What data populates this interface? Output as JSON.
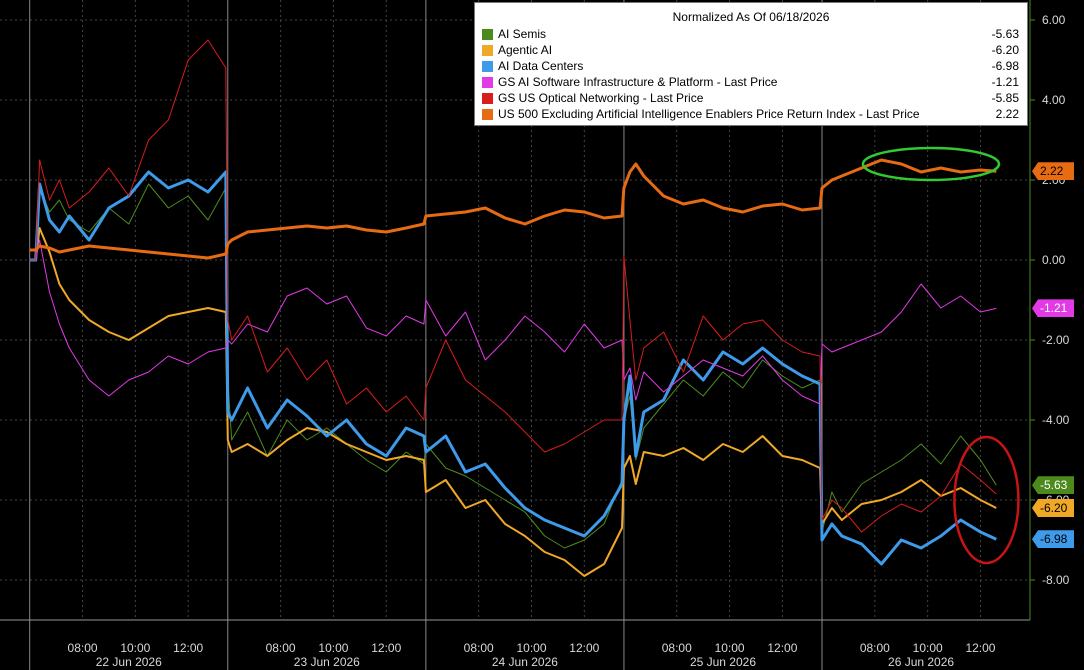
{
  "chart_data": {
    "type": "line",
    "title": "Normalized As Of 06/18/2026",
    "ylim": [
      -9.0,
      6.5
    ],
    "y_ticks": [
      6.0,
      4.0,
      2.0,
      0.0,
      -2.0,
      -4.0,
      -6.0,
      -8.0
    ],
    "y_tick_labels": [
      "6.00",
      "4.00",
      "2.00",
      "0.00",
      "-2.00",
      "-4.00",
      "-6.00",
      "-8.00"
    ],
    "x_ticks": [
      {
        "day": 0,
        "time": "08:00"
      },
      {
        "day": 0,
        "time": "10:00"
      },
      {
        "day": 0,
        "time": "12:00"
      },
      {
        "day": 1,
        "time": "08:00"
      },
      {
        "day": 1,
        "time": "10:00"
      },
      {
        "day": 1,
        "time": "12:00"
      },
      {
        "day": 2,
        "time": "08:00"
      },
      {
        "day": 2,
        "time": "10:00"
      },
      {
        "day": 2,
        "time": "12:00"
      },
      {
        "day": 3,
        "time": "08:00"
      },
      {
        "day": 3,
        "time": "10:00"
      },
      {
        "day": 3,
        "time": "12:00"
      },
      {
        "day": 4,
        "time": "08:00"
      },
      {
        "day": 4,
        "time": "10:00"
      },
      {
        "day": 4,
        "time": "12:00"
      }
    ],
    "days": [
      "22 Jun 2026",
      "23 Jun 2026",
      "24 Jun 2026",
      "25 Jun 2026",
      "26 Jun 2026"
    ],
    "x_unit": "session index (day + fraction of session 06:00–13:30)",
    "series": [
      {
        "name": "AI Semis",
        "color": "#4d8a1e",
        "last": "-5.63",
        "width": 1,
        "x": [
          0,
          0.03,
          0.05,
          0.1,
          0.15,
          0.2,
          0.3,
          0.4,
          0.5,
          0.6,
          0.7,
          0.8,
          0.9,
          0.99,
          1.0,
          1.02,
          1.1,
          1.2,
          1.3,
          1.4,
          1.5,
          1.6,
          1.7,
          1.8,
          1.9,
          1.99,
          2.0,
          2.1,
          2.2,
          2.3,
          2.4,
          2.5,
          2.6,
          2.7,
          2.8,
          2.9,
          2.99,
          3.0,
          3.03,
          3.06,
          3.1,
          3.2,
          3.3,
          3.4,
          3.5,
          3.6,
          3.7,
          3.8,
          3.9,
          3.99,
          4.0,
          4.05,
          4.1,
          4.2,
          4.3,
          4.4,
          4.5,
          4.6,
          4.7,
          4.8,
          4.88
        ],
        "y": [
          0,
          0,
          1.8,
          1.2,
          1.5,
          1.0,
          0.7,
          1.3,
          0.9,
          1.9,
          1.3,
          1.6,
          1.0,
          1.8,
          -3.0,
          -4.5,
          -3.8,
          -4.9,
          -4.0,
          -4.5,
          -4.2,
          -4.6,
          -5.0,
          -5.3,
          -4.8,
          -5.1,
          -4.6,
          -5.2,
          -5.4,
          -5.7,
          -6.0,
          -6.3,
          -6.9,
          -7.2,
          -7.0,
          -6.6,
          -5.5,
          -4.0,
          -3.4,
          -5.0,
          -4.2,
          -3.6,
          -3.0,
          -3.4,
          -2.8,
          -3.2,
          -2.5,
          -2.9,
          -3.2,
          -3.0,
          -6.8,
          -5.8,
          -6.3,
          -5.6,
          -5.3,
          -5.0,
          -4.6,
          -5.1,
          -4.4,
          -5.0,
          -5.63
        ]
      },
      {
        "name": "Agentic AI",
        "color": "#f0a826",
        "last": "-6.20",
        "width": 2,
        "x": [
          0,
          0.03,
          0.05,
          0.1,
          0.15,
          0.2,
          0.3,
          0.4,
          0.5,
          0.6,
          0.7,
          0.8,
          0.9,
          0.99,
          1.0,
          1.02,
          1.1,
          1.2,
          1.3,
          1.4,
          1.5,
          1.6,
          1.7,
          1.8,
          1.9,
          1.99,
          2.0,
          2.1,
          2.2,
          2.3,
          2.4,
          2.5,
          2.6,
          2.7,
          2.8,
          2.9,
          2.99,
          3.0,
          3.03,
          3.06,
          3.1,
          3.2,
          3.3,
          3.4,
          3.5,
          3.6,
          3.7,
          3.8,
          3.9,
          3.99,
          4.0,
          4.05,
          4.1,
          4.2,
          4.3,
          4.4,
          4.5,
          4.6,
          4.7,
          4.8,
          4.88
        ],
        "y": [
          0,
          0,
          0.8,
          0.2,
          -0.6,
          -1.0,
          -1.5,
          -1.8,
          -2.0,
          -1.7,
          -1.4,
          -1.3,
          -1.2,
          -1.3,
          -4.5,
          -4.8,
          -4.6,
          -4.9,
          -4.5,
          -4.2,
          -4.3,
          -4.6,
          -4.8,
          -5.0,
          -4.9,
          -5.0,
          -5.8,
          -5.5,
          -6.2,
          -6.0,
          -6.6,
          -6.9,
          -7.3,
          -7.5,
          -7.9,
          -7.6,
          -6.7,
          -5.2,
          -4.9,
          -5.6,
          -4.8,
          -4.9,
          -4.7,
          -5.0,
          -4.6,
          -4.8,
          -4.4,
          -4.9,
          -5.0,
          -5.2,
          -6.6,
          -6.2,
          -6.5,
          -6.1,
          -6.0,
          -5.8,
          -5.5,
          -5.9,
          -5.7,
          -6.0,
          -6.2
        ]
      },
      {
        "name": "AI Data Centers",
        "color": "#3e9bea",
        "last": "-6.98",
        "width": 3,
        "x": [
          0,
          0.03,
          0.05,
          0.1,
          0.15,
          0.2,
          0.3,
          0.4,
          0.5,
          0.6,
          0.7,
          0.8,
          0.9,
          0.99,
          1.0,
          1.02,
          1.1,
          1.2,
          1.3,
          1.4,
          1.5,
          1.6,
          1.7,
          1.8,
          1.9,
          1.99,
          2.0,
          2.1,
          2.2,
          2.3,
          2.4,
          2.5,
          2.6,
          2.7,
          2.8,
          2.9,
          2.99,
          3.0,
          3.03,
          3.06,
          3.1,
          3.2,
          3.3,
          3.4,
          3.5,
          3.6,
          3.7,
          3.8,
          3.9,
          3.99,
          4.0,
          4.05,
          4.1,
          4.2,
          4.3,
          4.4,
          4.5,
          4.6,
          4.7,
          4.8,
          4.88
        ],
        "y": [
          0,
          0,
          1.9,
          1.0,
          0.7,
          1.1,
          0.5,
          1.3,
          1.6,
          2.2,
          1.8,
          2.0,
          1.7,
          2.2,
          -3.8,
          -4.0,
          -3.2,
          -4.2,
          -3.5,
          -3.9,
          -4.4,
          -4.0,
          -4.6,
          -4.9,
          -4.2,
          -4.4,
          -4.8,
          -4.4,
          -5.3,
          -5.1,
          -5.7,
          -6.2,
          -6.5,
          -6.7,
          -6.9,
          -6.4,
          -5.6,
          -4.0,
          -2.9,
          -4.9,
          -3.8,
          -3.5,
          -2.5,
          -3.0,
          -2.3,
          -2.6,
          -2.2,
          -2.6,
          -2.9,
          -3.1,
          -7.0,
          -6.6,
          -6.9,
          -7.1,
          -7.6,
          -7.0,
          -7.2,
          -6.9,
          -6.5,
          -6.8,
          -6.98
        ]
      },
      {
        "name": "GS AI Software Infrastructure & Platform - Last Price",
        "color": "#e23ae6",
        "last": "-1.21",
        "width": 1,
        "x": [
          0,
          0.03,
          0.05,
          0.1,
          0.15,
          0.2,
          0.3,
          0.4,
          0.5,
          0.6,
          0.7,
          0.8,
          0.9,
          0.99,
          1.0,
          1.02,
          1.1,
          1.2,
          1.3,
          1.4,
          1.5,
          1.6,
          1.7,
          1.8,
          1.9,
          1.99,
          2.0,
          2.1,
          2.2,
          2.3,
          2.4,
          2.5,
          2.6,
          2.7,
          2.8,
          2.9,
          2.99,
          3.0,
          3.03,
          3.06,
          3.1,
          3.2,
          3.3,
          3.4,
          3.5,
          3.6,
          3.7,
          3.8,
          3.9,
          3.99,
          4.0,
          4.05,
          4.1,
          4.2,
          4.3,
          4.4,
          4.5,
          4.6,
          4.7,
          4.8,
          4.88
        ],
        "y": [
          0,
          0,
          0.5,
          -0.8,
          -1.6,
          -2.2,
          -3.0,
          -3.4,
          -3.0,
          -2.8,
          -2.4,
          -2.6,
          -2.3,
          -2.2,
          -2.0,
          -2.1,
          -1.6,
          -1.8,
          -0.9,
          -0.7,
          -1.1,
          -0.9,
          -1.7,
          -1.9,
          -1.4,
          -1.6,
          -1.0,
          -1.9,
          -1.3,
          -2.5,
          -2.0,
          -1.4,
          -1.8,
          -2.3,
          -1.6,
          -2.2,
          -2.0,
          -3.0,
          -2.7,
          -3.5,
          -2.8,
          -3.3,
          -2.9,
          -2.5,
          -2.7,
          -2.9,
          -2.4,
          -3.0,
          -3.4,
          -3.6,
          -2.1,
          -2.3,
          -2.2,
          -2.0,
          -1.8,
          -1.3,
          -0.6,
          -1.2,
          -0.9,
          -1.3,
          -1.21
        ]
      },
      {
        "name": "GS US Optical Networking - Last Price",
        "color": "#d91c1c",
        "last": "-5.85",
        "width": 1,
        "x": [
          0,
          0.03,
          0.05,
          0.1,
          0.15,
          0.2,
          0.3,
          0.4,
          0.5,
          0.6,
          0.7,
          0.8,
          0.9,
          0.99,
          1.0,
          1.02,
          1.1,
          1.2,
          1.3,
          1.4,
          1.5,
          1.6,
          1.7,
          1.8,
          1.9,
          1.99,
          2.0,
          2.1,
          2.2,
          2.3,
          2.4,
          2.5,
          2.6,
          2.7,
          2.8,
          2.9,
          2.99,
          3.0,
          3.03,
          3.06,
          3.1,
          3.2,
          3.3,
          3.4,
          3.5,
          3.6,
          3.7,
          3.8,
          3.9,
          3.99,
          4.0,
          4.05,
          4.1,
          4.2,
          4.3,
          4.4,
          4.5,
          4.6,
          4.7,
          4.8,
          4.88
        ],
        "y": [
          0,
          0,
          2.5,
          1.5,
          2.0,
          1.3,
          1.7,
          2.3,
          1.6,
          3.0,
          3.5,
          5.0,
          5.5,
          4.8,
          -1.5,
          -2.0,
          -1.4,
          -2.8,
          -2.2,
          -3.0,
          -2.5,
          -3.6,
          -3.2,
          -3.8,
          -3.4,
          -4.0,
          -3.2,
          -2.0,
          -3.0,
          -3.4,
          -3.8,
          -4.3,
          -4.8,
          -4.6,
          -4.3,
          -4.0,
          -4.0,
          0.1,
          -1.5,
          -3.0,
          -2.2,
          -1.8,
          -2.8,
          -1.4,
          -2.0,
          -1.6,
          -1.5,
          -2.0,
          -2.3,
          -2.4,
          -6.5,
          -6.0,
          -6.2,
          -6.8,
          -6.4,
          -6.1,
          -6.3,
          -5.9,
          -5.1,
          -5.5,
          -5.85
        ]
      },
      {
        "name": "US 500 Excluding Artificial Intelligence Enablers Price Return Index - Last Price",
        "color": "#e66b12",
        "last": "2.22",
        "width": 3,
        "x": [
          0,
          0.03,
          0.05,
          0.1,
          0.15,
          0.2,
          0.3,
          0.4,
          0.5,
          0.6,
          0.7,
          0.8,
          0.9,
          0.99,
          1.0,
          1.02,
          1.1,
          1.2,
          1.3,
          1.4,
          1.5,
          1.6,
          1.7,
          1.8,
          1.9,
          1.99,
          2.0,
          2.1,
          2.2,
          2.3,
          2.4,
          2.5,
          2.6,
          2.7,
          2.8,
          2.9,
          2.99,
          3.0,
          3.03,
          3.06,
          3.1,
          3.2,
          3.3,
          3.4,
          3.5,
          3.6,
          3.7,
          3.8,
          3.9,
          3.99,
          4.0,
          4.05,
          4.1,
          4.2,
          4.3,
          4.4,
          4.5,
          4.6,
          4.7,
          4.8,
          4.88
        ],
        "y": [
          0.25,
          0.25,
          0.35,
          0.3,
          0.2,
          0.25,
          0.35,
          0.3,
          0.25,
          0.2,
          0.15,
          0.1,
          0.05,
          0.15,
          0.4,
          0.5,
          0.7,
          0.75,
          0.8,
          0.85,
          0.8,
          0.85,
          0.75,
          0.7,
          0.8,
          0.9,
          1.1,
          1.15,
          1.2,
          1.3,
          1.05,
          0.9,
          1.1,
          1.25,
          1.2,
          1.05,
          1.1,
          1.8,
          2.2,
          2.4,
          2.1,
          1.6,
          1.4,
          1.5,
          1.3,
          1.2,
          1.35,
          1.4,
          1.25,
          1.3,
          1.8,
          2.0,
          2.1,
          2.3,
          2.5,
          2.4,
          2.2,
          2.3,
          2.2,
          2.25,
          2.22
        ]
      }
    ]
  },
  "legend": {
    "title": "Normalized As Of 06/18/2026"
  },
  "highlight": {
    "green_ellipse": "around US 500 ex-AI recent highs",
    "red_ellipse": "around AI groups latest lows"
  }
}
